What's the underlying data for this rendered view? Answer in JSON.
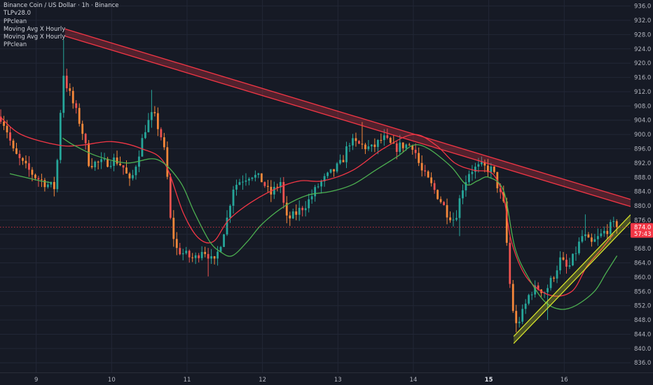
{
  "legend": {
    "title": "Binance Coin / US Dollar · 1h · Binance",
    "indicators": [
      "TLPv28.0",
      "PPclean",
      "Moving Avg X Hourly",
      "Moving Avg X Hourly",
      "PPclean"
    ]
  },
  "price_badge": {
    "price": "874.0",
    "countdown": "57:43",
    "color": "#f23645"
  },
  "chart_data": {
    "type": "line",
    "title": "Binance Coin / US Dollar · 1h · Binance",
    "xlabel": "",
    "ylabel": "",
    "x_ticks": [
      "9",
      "10",
      "11",
      "12",
      "13",
      "14",
      "15",
      "16"
    ],
    "x_tick_bold": "15",
    "y_ticks": [
      "836.0",
      "840.0",
      "844.0",
      "848.0",
      "852.0",
      "856.0",
      "860.0",
      "864.0",
      "868.0",
      "872.0",
      "876.0",
      "880.0",
      "884.0",
      "888.0",
      "892.0",
      "896.0",
      "900.0",
      "904.0",
      "908.0",
      "912.0",
      "916.0",
      "920.0",
      "924.0",
      "928.0",
      "932.0",
      "936.0"
    ],
    "ylim": [
      833.3,
      937.7
    ],
    "x_range": [
      8.52,
      16.88
    ],
    "grid": true,
    "last_price": 874.0,
    "colors": {
      "up": "#26a69a",
      "down": "#ef5350",
      "candle_orange": "#f7883a",
      "resistance": "#f23645",
      "support": "#d4e12a",
      "ma_red": "#f23645",
      "ma_green": "#4caf50"
    },
    "resistance_band": {
      "start": [
        9.38,
        928.6
      ],
      "end": [
        16.88,
        880.8
      ],
      "width": 2.0
    },
    "support_band": {
      "start": [
        15.33,
        842.4
      ],
      "end": [
        16.88,
        876.5
      ],
      "width": 2.0
    },
    "anchors": [
      [
        8.53,
        905
      ],
      [
        8.6,
        902
      ],
      [
        8.7,
        895
      ],
      [
        8.85,
        891
      ],
      [
        9.0,
        888
      ],
      [
        9.15,
        886
      ],
      [
        9.25,
        885
      ],
      [
        9.3,
        898
      ],
      [
        9.35,
        918
      ],
      [
        9.4,
        914
      ],
      [
        9.5,
        908
      ],
      [
        9.6,
        902
      ],
      [
        9.7,
        892
      ],
      [
        9.9,
        892
      ],
      [
        10.05,
        893
      ],
      [
        10.15,
        891
      ],
      [
        10.25,
        886
      ],
      [
        10.35,
        894
      ],
      [
        10.45,
        902
      ],
      [
        10.55,
        906
      ],
      [
        10.65,
        900
      ],
      [
        10.72,
        893
      ],
      [
        10.78,
        876
      ],
      [
        10.85,
        868
      ],
      [
        11.0,
        866
      ],
      [
        11.1,
        865
      ],
      [
        11.2,
        868
      ],
      [
        11.3,
        866
      ],
      [
        11.35,
        863
      ],
      [
        11.45,
        870
      ],
      [
        11.55,
        878
      ],
      [
        11.6,
        885
      ],
      [
        11.7,
        887
      ],
      [
        11.85,
        889
      ],
      [
        12.0,
        887
      ],
      [
        12.1,
        883
      ],
      [
        12.25,
        887
      ],
      [
        12.3,
        876
      ],
      [
        12.4,
        877
      ],
      [
        12.5,
        879
      ],
      [
        12.6,
        881
      ],
      [
        12.75,
        886
      ],
      [
        12.9,
        889
      ],
      [
        13.05,
        892
      ],
      [
        13.15,
        898
      ],
      [
        13.3,
        897
      ],
      [
        13.45,
        896
      ],
      [
        13.6,
        899
      ],
      [
        13.75,
        896
      ],
      [
        13.85,
        897
      ],
      [
        14.0,
        897
      ],
      [
        14.1,
        890
      ],
      [
        14.2,
        887
      ],
      [
        14.35,
        882
      ],
      [
        14.45,
        878
      ],
      [
        14.55,
        876
      ],
      [
        14.65,
        885
      ],
      [
        14.75,
        890
      ],
      [
        14.9,
        891
      ],
      [
        15.05,
        890
      ],
      [
        15.2,
        880
      ],
      [
        15.28,
        858
      ],
      [
        15.35,
        846
      ],
      [
        15.45,
        850
      ],
      [
        15.55,
        856
      ],
      [
        15.65,
        857
      ],
      [
        15.75,
        856
      ],
      [
        15.85,
        860
      ],
      [
        15.95,
        865
      ],
      [
        16.05,
        862
      ],
      [
        16.15,
        867
      ],
      [
        16.25,
        872
      ],
      [
        16.35,
        869
      ],
      [
        16.5,
        872
      ],
      [
        16.6,
        874
      ],
      [
        16.65,
        874.5
      ],
      [
        16.7,
        874.0
      ]
    ],
    "ma_red": [
      [
        8.52,
        905
      ],
      [
        8.8,
        900
      ],
      [
        9.3,
        897
      ],
      [
        9.6,
        897
      ],
      [
        10.0,
        898
      ],
      [
        10.4,
        896
      ],
      [
        10.7,
        892
      ],
      [
        10.95,
        878
      ],
      [
        11.15,
        871
      ],
      [
        11.35,
        870
      ],
      [
        11.55,
        876
      ],
      [
        11.85,
        881
      ],
      [
        12.2,
        885
      ],
      [
        12.5,
        887
      ],
      [
        12.8,
        887
      ],
      [
        13.2,
        890
      ],
      [
        13.6,
        896
      ],
      [
        14.0,
        900
      ],
      [
        14.3,
        897
      ],
      [
        14.55,
        892
      ],
      [
        14.8,
        890
      ],
      [
        15.05,
        889
      ],
      [
        15.2,
        882
      ],
      [
        15.3,
        870
      ],
      [
        15.5,
        860
      ],
      [
        15.8,
        855
      ],
      [
        16.1,
        856
      ],
      [
        16.3,
        863
      ],
      [
        16.5,
        868
      ],
      [
        16.65,
        872
      ]
    ],
    "ma_green": [
      [
        9.35,
        899
      ],
      [
        9.5,
        897
      ],
      [
        9.8,
        894
      ],
      [
        10.2,
        892
      ],
      [
        10.6,
        893
      ],
      [
        10.9,
        887
      ],
      [
        11.1,
        878
      ],
      [
        11.3,
        870
      ],
      [
        11.45,
        867
      ],
      [
        11.6,
        866
      ],
      [
        11.8,
        870
      ],
      [
        12.0,
        875
      ],
      [
        12.3,
        880
      ],
      [
        12.6,
        883
      ],
      [
        12.9,
        884
      ],
      [
        13.2,
        886
      ],
      [
        13.5,
        890
      ],
      [
        13.8,
        894
      ],
      [
        14.0,
        897
      ],
      [
        14.2,
        896
      ],
      [
        14.5,
        891
      ],
      [
        14.7,
        886
      ],
      [
        14.85,
        887
      ],
      [
        15.0,
        888
      ],
      [
        15.2,
        884
      ],
      [
        15.35,
        868
      ],
      [
        15.55,
        859
      ],
      [
        15.75,
        853
      ],
      [
        15.95,
        851
      ],
      [
        16.15,
        852
      ],
      [
        16.4,
        856
      ],
      [
        16.55,
        861
      ],
      [
        16.7,
        866
      ]
    ],
    "ma_green_2": [
      [
        8.65,
        889
      ],
      [
        8.85,
        888
      ],
      [
        9.05,
        887
      ],
      [
        9.2,
        886.5
      ]
    ]
  }
}
